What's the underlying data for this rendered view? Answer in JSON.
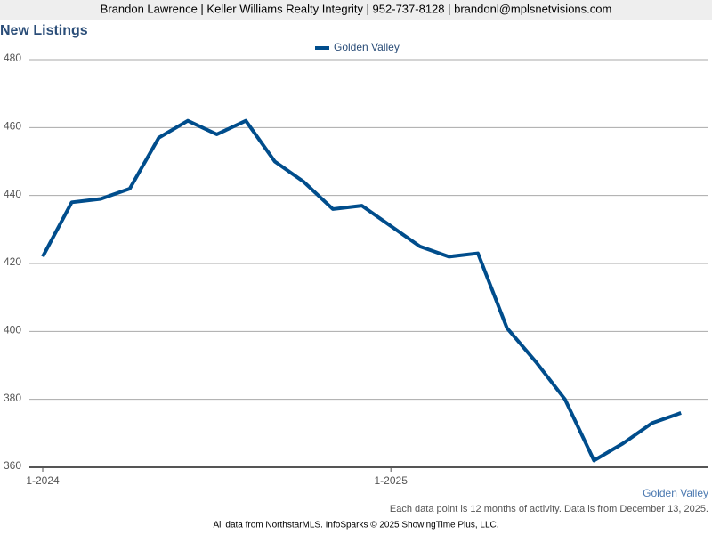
{
  "header": "Brandon Lawrence | Keller Williams Realty Integrity | 952-737-8128 | brandonl@mplsnetvisions.com",
  "chart_data": {
    "type": "line",
    "title": "New Listings",
    "categories": [
      "1-2024",
      null,
      null,
      null,
      null,
      null,
      null,
      null,
      null,
      null,
      null,
      null,
      "1-2025",
      null,
      null,
      null,
      null,
      null,
      null,
      null,
      null,
      null,
      null
    ],
    "series": [
      {
        "name": "Golden Valley",
        "color": "#004d8c",
        "values": [
          422,
          438,
          439,
          442,
          457,
          462,
          458,
          462,
          450,
          444,
          436,
          437,
          431,
          425,
          422,
          423,
          401,
          391,
          380,
          362,
          367,
          373,
          376
        ]
      }
    ],
    "ylim": [
      360,
      480
    ],
    "yticks": [
      360,
      380,
      400,
      420,
      440,
      460,
      480
    ],
    "grid": true,
    "legend": "top"
  },
  "footer": {
    "note": "Each data point is 12 months of activity. Data is from December 13, 2025.",
    "source": "All data from NorthstarMLS. InfoSparks © 2025 ShowingTime Plus, LLC."
  }
}
